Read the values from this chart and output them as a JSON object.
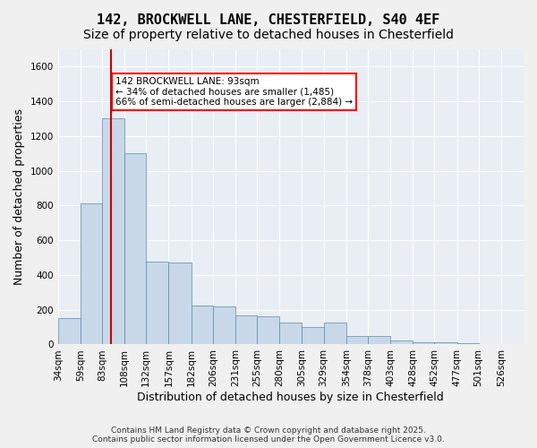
{
  "title1": "142, BROCKWELL LANE, CHESTERFIELD, S40 4EF",
  "title2": "Size of property relative to detached houses in Chesterfield",
  "xlabel": "Distribution of detached houses by size in Chesterfield",
  "ylabel": "Number of detached properties",
  "bar_color": "#c8d8e8",
  "bar_edge_color": "#5a8ab0",
  "background_color": "#e8eef4",
  "annotation_text": "142 BROCKWELL LANE: 93sqm\n← 34% of detached houses are smaller (1,485)\n66% of semi-detached houses are larger (2,884) →",
  "vline_x": 93,
  "vline_color": "#cc0000",
  "categories": [
    "34sqm",
    "59sqm",
    "83sqm",
    "108sqm",
    "132sqm",
    "157sqm",
    "182sqm",
    "206sqm",
    "231sqm",
    "255sqm",
    "280sqm",
    "305sqm",
    "329sqm",
    "354sqm",
    "378sqm",
    "403sqm",
    "428sqm",
    "452sqm",
    "477sqm",
    "501sqm",
    "526sqm"
  ],
  "bin_edges": [
    34,
    59,
    83,
    108,
    132,
    157,
    182,
    206,
    231,
    255,
    280,
    305,
    329,
    354,
    378,
    403,
    428,
    452,
    477,
    501,
    526,
    551
  ],
  "values": [
    150,
    810,
    1305,
    1100,
    475,
    470,
    225,
    220,
    165,
    160,
    125,
    100,
    125,
    50,
    48,
    25,
    14,
    14,
    5,
    4,
    4
  ],
  "ylim": [
    0,
    1700
  ],
  "yticks": [
    0,
    200,
    400,
    600,
    800,
    1000,
    1200,
    1400,
    1600
  ],
  "footer": "Contains HM Land Registry data © Crown copyright and database right 2025.\nContains public sector information licensed under the Open Government Licence v3.0.",
  "title_fontsize": 11,
  "subtitle_fontsize": 10,
  "axis_fontsize": 9,
  "tick_fontsize": 7.5
}
